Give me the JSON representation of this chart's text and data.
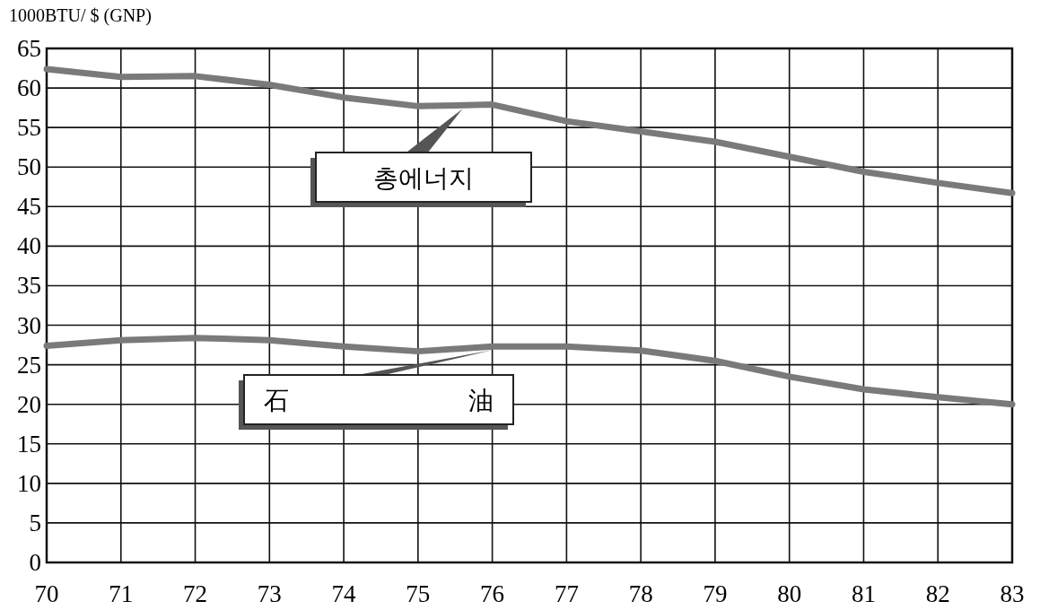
{
  "chart_data": {
    "type": "line",
    "ylabel": "1000BTU/ $ (GNP)",
    "x": [
      70,
      71,
      72,
      73,
      74,
      75,
      76,
      77,
      78,
      79,
      80,
      81,
      82,
      83
    ],
    "series": [
      {
        "name": "총에너지",
        "color": "#7a7a7a",
        "values": [
          62.4,
          61.4,
          61.5,
          60.4,
          58.8,
          57.7,
          57.9,
          55.8,
          54.5,
          53.2,
          51.3,
          49.4,
          48.0,
          46.7
        ]
      },
      {
        "name": "石油",
        "color": "#7a7a7a",
        "values": [
          27.4,
          28.1,
          28.4,
          28.1,
          27.3,
          26.7,
          27.3,
          27.3,
          26.8,
          25.5,
          23.5,
          21.9,
          20.9,
          20.0
        ]
      }
    ],
    "xlim": [
      70,
      83
    ],
    "xticks": [
      70,
      71,
      72,
      73,
      74,
      75,
      76,
      77,
      78,
      79,
      80,
      81,
      82,
      83
    ],
    "ylim": [
      0,
      65
    ],
    "yticks": [
      0,
      5,
      10,
      15,
      20,
      25,
      30,
      35,
      40,
      45,
      50,
      55,
      60,
      65
    ],
    "grid": true,
    "marker": "none",
    "line_style": "solid"
  }
}
